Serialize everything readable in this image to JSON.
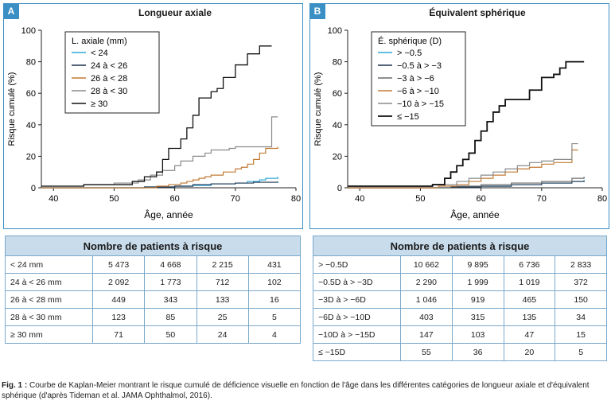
{
  "panels": [
    {
      "tag": "A",
      "title": "Longueur axiale"
    },
    {
      "tag": "B",
      "title": "Équivalent sphérique"
    }
  ],
  "chart_data": [
    {
      "type": "line",
      "title": "Longueur axiale",
      "xlabel": "Âge, année",
      "ylabel": "Risque cumulé (%)",
      "xlim": [
        38,
        80
      ],
      "ylim": [
        0,
        100
      ],
      "xticks": [
        40,
        50,
        60,
        70,
        80
      ],
      "yticks": [
        0,
        20,
        40,
        60,
        80,
        100
      ],
      "legend_title": "L. axiale (mm)",
      "legend_placement": "top-left",
      "series": [
        {
          "name": "< 24",
          "color": "#2fa8d8",
          "width": 1.2,
          "x": [
            38,
            55,
            60,
            63,
            66,
            70,
            72,
            74,
            75,
            77
          ],
          "y": [
            0,
            0.5,
            1,
            1.5,
            2.5,
            3,
            4,
            5,
            6,
            7
          ]
        },
        {
          "name": "24 à < 26",
          "color": "#1e3550",
          "width": 1.2,
          "x": [
            38,
            55,
            60,
            63,
            66,
            70,
            73,
            77
          ],
          "y": [
            0,
            0.5,
            1,
            2,
            2.5,
            3,
            3.5,
            4
          ]
        },
        {
          "name": "26 à < 28",
          "color": "#c27a35",
          "width": 1.2,
          "x": [
            38,
            57,
            59,
            61,
            62,
            63,
            64,
            65,
            66,
            68,
            70,
            71,
            72,
            73,
            74,
            75,
            77
          ],
          "y": [
            0,
            1,
            2,
            3,
            4,
            5,
            6,
            7,
            8,
            10,
            12,
            13,
            15,
            18,
            22,
            25,
            26
          ]
        },
        {
          "name": "28 à < 30",
          "color": "#8a8a8a",
          "width": 1.2,
          "x": [
            38,
            45,
            50,
            54,
            56,
            58,
            60,
            61,
            63,
            65,
            66,
            69,
            70,
            72,
            76,
            77
          ],
          "y": [
            1,
            2,
            3,
            5,
            8,
            11,
            14,
            17,
            20,
            22,
            24,
            25,
            26,
            26,
            45,
            45
          ]
        },
        {
          "name": "≥ 30",
          "color": "#111111",
          "width": 1.3,
          "x": [
            38,
            45,
            53,
            55,
            57,
            58,
            59,
            61,
            62,
            63,
            64,
            66,
            67,
            68,
            70,
            72,
            74,
            76
          ],
          "y": [
            1,
            2,
            4,
            7,
            10,
            18,
            25,
            31,
            38,
            46,
            57,
            61,
            63,
            70,
            78,
            85,
            90,
            90
          ]
        }
      ]
    },
    {
      "type": "line",
      "title": "Équivalent sphérique",
      "xlabel": "Âge, année",
      "ylabel": "Risque cumulé (%)",
      "xlim": [
        38,
        80
      ],
      "ylim": [
        0,
        100
      ],
      "xticks": [
        40,
        50,
        60,
        70,
        80
      ],
      "yticks": [
        0,
        20,
        40,
        60,
        80,
        100
      ],
      "legend_title": "É. sphérique (D)",
      "legend_placement": "top-left",
      "series": [
        {
          "name": "> −0.5",
          "color": "#2fa8d8",
          "width": 1.2,
          "x": [
            38,
            55,
            60,
            65,
            70,
            75,
            77
          ],
          "y": [
            0,
            0.5,
            1,
            2,
            3,
            4,
            5
          ]
        },
        {
          "name": "−0.5 à > −3",
          "color": "#1e3550",
          "width": 1.2,
          "x": [
            38,
            55,
            60,
            65,
            70,
            75,
            77
          ],
          "y": [
            0,
            0.5,
            1,
            2,
            3,
            4,
            4.5
          ]
        },
        {
          "name": "−3 à > −6",
          "color": "#6a6a6a",
          "width": 1.2,
          "x": [
            38,
            55,
            60,
            65,
            70,
            75,
            77
          ],
          "y": [
            0,
            1,
            2,
            3,
            4,
            6,
            7
          ]
        },
        {
          "name": "−6 à > −10",
          "color": "#c27a35",
          "width": 1.2,
          "x": [
            38,
            53,
            56,
            58,
            60,
            62,
            64,
            66,
            68,
            70,
            72,
            75,
            76
          ],
          "y": [
            0,
            1,
            2,
            4,
            6,
            8,
            10,
            12,
            13,
            15,
            16,
            24,
            24
          ]
        },
        {
          "name": "−10 à > −15",
          "color": "#8a8a8a",
          "width": 1.2,
          "x": [
            38,
            52,
            56,
            58,
            60,
            62,
            64,
            66,
            68,
            70,
            72,
            75,
            76
          ],
          "y": [
            1,
            2,
            4,
            6,
            8,
            10,
            12,
            14,
            16,
            17,
            18,
            28,
            28
          ]
        },
        {
          "name": "≤ −15",
          "color": "#111111",
          "width": 1.8,
          "x": [
            38,
            52,
            54,
            55,
            56,
            57,
            58,
            59,
            60,
            61,
            62,
            63,
            64,
            67,
            68,
            70,
            72,
            73,
            74,
            75,
            77
          ],
          "y": [
            1,
            2,
            6,
            10,
            14,
            18,
            22,
            30,
            36,
            42,
            48,
            52,
            56,
            56,
            62,
            70,
            72,
            76,
            80,
            80,
            80
          ]
        }
      ]
    }
  ],
  "tables": [
    {
      "header": "Nombre de patients à risque",
      "rows": [
        {
          "label": "< 24 mm",
          "values": [
            "5 473",
            "4 668",
            "2 215",
            "431"
          ]
        },
        {
          "label": "24 à < 26 mm",
          "values": [
            "2 092",
            "1 773",
            "712",
            "102"
          ]
        },
        {
          "label": "26 à < 28 mm",
          "values": [
            "449",
            "343",
            "133",
            "16"
          ]
        },
        {
          "label": "28 à < 30 mm",
          "values": [
            "123",
            "85",
            "25",
            "5"
          ]
        },
        {
          "label": "≥ 30 mm",
          "values": [
            "71",
            "50",
            "24",
            "4"
          ]
        }
      ]
    },
    {
      "header": "Nombre de patients à risque",
      "rows": [
        {
          "label": "> −0.5D",
          "values": [
            "10 662",
            "9 895",
            "6 736",
            "2 833"
          ]
        },
        {
          "label": "−0.5D à > −3D",
          "values": [
            "2 290",
            "1 999",
            "1 019",
            "372"
          ]
        },
        {
          "label": "−3D à > −6D",
          "values": [
            "1 046",
            "919",
            "465",
            "150"
          ]
        },
        {
          "label": "−6D à > −10D",
          "values": [
            "403",
            "315",
            "135",
            "34"
          ]
        },
        {
          "label": "−10D à > −15D",
          "values": [
            "147",
            "103",
            "47",
            "15"
          ]
        },
        {
          "label": "≤ −15D",
          "values": [
            "55",
            "36",
            "20",
            "5"
          ]
        }
      ]
    }
  ],
  "caption": {
    "fig_label": "Fig. 1 :",
    "text": "Courbe de Kaplan-Meier montrant le risque cumulé de déficience visuelle en fonction de l'âge dans les différentes catégories de longueur axiale et d'équivalent sphérique (d'après Tideman et al. JAMA Ophthalmol, 2016)."
  }
}
